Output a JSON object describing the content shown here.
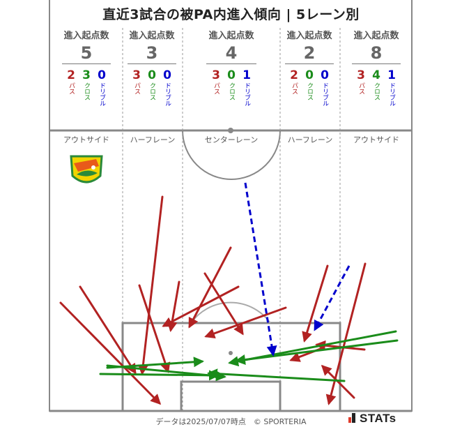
{
  "title": "直近3試合の被PA内進入傾向 | 5レーン別",
  "lanes": [
    {
      "head": "進入起点数",
      "count": "5",
      "pass": "2",
      "cross": "3",
      "dribble": "0",
      "name": "アウトサイド"
    },
    {
      "head": "進入起点数",
      "count": "3",
      "pass": "3",
      "cross": "0",
      "dribble": "0",
      "name": "ハーフレーン"
    },
    {
      "head": "進入起点数",
      "count": "4",
      "pass": "3",
      "cross": "0",
      "dribble": "1",
      "name": "センターレーン"
    },
    {
      "head": "進入起点数",
      "count": "2",
      "pass": "2",
      "cross": "0",
      "dribble": "0",
      "name": "ハーフレーン"
    },
    {
      "head": "進入起点数",
      "count": "8",
      "pass": "3",
      "cross": "4",
      "dribble": "1",
      "name": "アウトサイド"
    }
  ],
  "labels": {
    "pass": "パス",
    "cross": "クロス",
    "dribble": "ドリブル"
  },
  "colors": {
    "pass": "#b22222",
    "cross": "#1a8c1a",
    "dribble": "#0000cc",
    "pitch_line": "#888888"
  },
  "team_crest_icon": "jef-united-crest-icon",
  "footer": "データは2025/07/07時点　© SPORTERIA",
  "brand": "STATs"
}
